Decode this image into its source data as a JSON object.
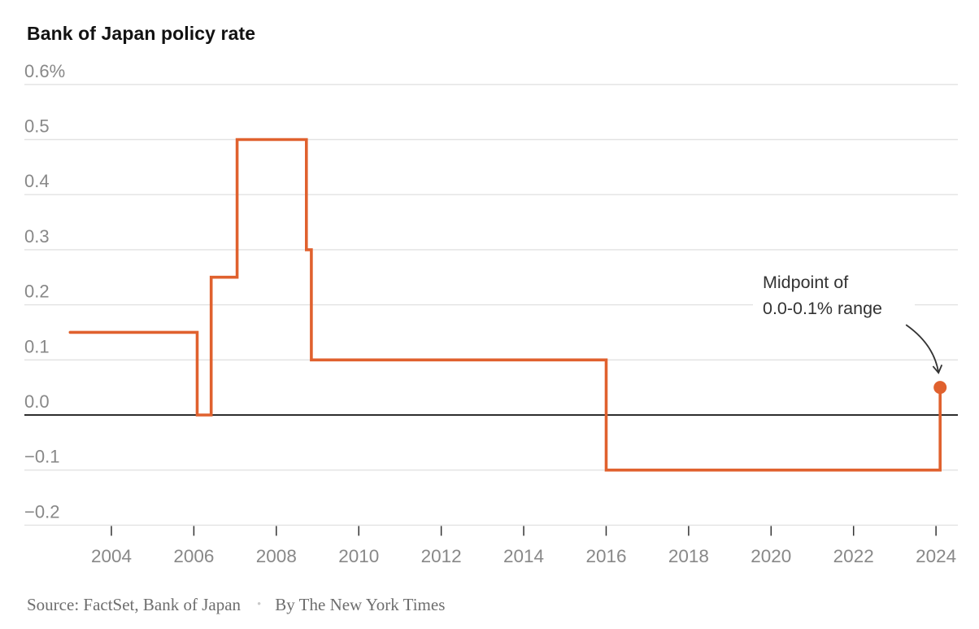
{
  "title": "Bank of Japan policy rate",
  "chart_data": {
    "type": "line",
    "subtype": "step",
    "title": "Bank of Japan policy rate",
    "unit": "%",
    "grid": "horizontal",
    "legend": "none",
    "x_domain": [
      2001.89,
      2024.53
    ],
    "y_domain": [
      -0.2,
      0.6
    ],
    "x_ticks": [
      2004,
      2006,
      2008,
      2010,
      2012,
      2014,
      2016,
      2018,
      2020,
      2022,
      2024
    ],
    "y_ticks": [
      {
        "value": 0.6,
        "label": "0.6%"
      },
      {
        "value": 0.5,
        "label": "0.5"
      },
      {
        "value": 0.4,
        "label": "0.4"
      },
      {
        "value": 0.3,
        "label": "0.3"
      },
      {
        "value": 0.2,
        "label": "0.2"
      },
      {
        "value": 0.1,
        "label": "0.1"
      },
      {
        "value": 0.0,
        "label": "0.0"
      },
      {
        "value": -0.1,
        "label": "−0.1"
      },
      {
        "value": -0.2,
        "label": "−0.2"
      }
    ],
    "zero_line": 0.0,
    "series": [
      {
        "name": "Bank of Japan policy rate",
        "points": [
          [
            2003.0,
            0.15
          ],
          [
            2006.08,
            0.15
          ],
          [
            2006.08,
            0.0
          ],
          [
            2006.42,
            0.0
          ],
          [
            2006.42,
            0.25
          ],
          [
            2007.05,
            0.25
          ],
          [
            2007.05,
            0.5
          ],
          [
            2008.73,
            0.5
          ],
          [
            2008.73,
            0.3
          ],
          [
            2008.85,
            0.3
          ],
          [
            2008.85,
            0.1
          ],
          [
            2016.0,
            0.1
          ],
          [
            2016.0,
            -0.1
          ],
          [
            2024.1,
            -0.1
          ],
          [
            2024.1,
            0.05
          ]
        ],
        "end_dot": [
          2024.1,
          0.05
        ]
      }
    ],
    "annotation": {
      "lines": [
        "Midpoint of",
        "0.0-0.1% range"
      ],
      "target": [
        2024.1,
        0.05
      ]
    },
    "colors": {
      "line": "#e0612e",
      "grid": "#e2e2e2",
      "zero_line": "#2e2e2e",
      "tick": "#333333",
      "axis_label": "#888888",
      "annotation_text": "#333333",
      "arrow": "#333333"
    }
  },
  "footer": {
    "source": "Source: FactSet, Bank of Japan",
    "separator": "•",
    "byline": "By The New York Times"
  }
}
